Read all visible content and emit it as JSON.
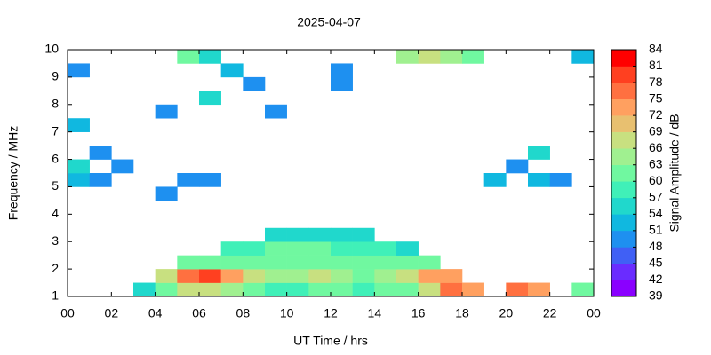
{
  "chart_data": {
    "type": "heatmap",
    "title": "2025-04-07",
    "x_label": "UT Time / hrs",
    "y_label": "Frequency / MHz",
    "colorbar_label": "Signal Amplitude / dB",
    "xlim": [
      0,
      24
    ],
    "ylim": [
      1,
      10
    ],
    "xticks": [
      {
        "value": 0,
        "label": "00"
      },
      {
        "value": 2,
        "label": "02"
      },
      {
        "value": 4,
        "label": "04"
      },
      {
        "value": 6,
        "label": "06"
      },
      {
        "value": 8,
        "label": "08"
      },
      10,
      12,
      14,
      16,
      18,
      20,
      22,
      {
        "value": 24,
        "label": "00"
      }
    ],
    "yticks": [
      1,
      2,
      3,
      4,
      5,
      6,
      7,
      8,
      9,
      10
    ],
    "clim": [
      39,
      84
    ],
    "cticks": [
      39,
      42,
      45,
      48,
      51,
      54,
      57,
      60,
      63,
      66,
      69,
      72,
      75,
      78,
      81,
      84
    ],
    "colorscale": [
      "#8a00ff",
      "#6a2cff",
      "#4060f5",
      "#1e90f0",
      "#10b8e0",
      "#20d8cc",
      "#40f0b8",
      "#70f8a0",
      "#a0f090",
      "#c8e080",
      "#e8c070",
      "#ffa060",
      "#ff7040",
      "#ff4020",
      "#ff0000"
    ],
    "z": [
      [
        null,
        null,
        null,
        55,
        62,
        68,
        66,
        64,
        60,
        58,
        58,
        60,
        60,
        58,
        60,
        62,
        66,
        76,
        72,
        null,
        76,
        74,
        null,
        60
      ],
      [
        null,
        null,
        null,
        null,
        66,
        76,
        78,
        74,
        66,
        64,
        64,
        66,
        64,
        62,
        64,
        68,
        72,
        74,
        null,
        null,
        null,
        null,
        null,
        null
      ],
      [
        null,
        null,
        null,
        null,
        null,
        60,
        62,
        62,
        60,
        60,
        62,
        62,
        60,
        60,
        60,
        60,
        62,
        null,
        null,
        null,
        null,
        null,
        null,
        null
      ],
      [
        null,
        null,
        null,
        null,
        null,
        null,
        null,
        58,
        58,
        60,
        60,
        60,
        58,
        58,
        58,
        56,
        null,
        null,
        null,
        null,
        null,
        null,
        null,
        null
      ],
      [
        null,
        null,
        null,
        null,
        null,
        null,
        null,
        null,
        null,
        54,
        54,
        55,
        54,
        54,
        null,
        null,
        null,
        null,
        null,
        null,
        null,
        null,
        null,
        null
      ],
      [
        null,
        null,
        null,
        null,
        null,
        null,
        null,
        null,
        null,
        null,
        null,
        null,
        null,
        null,
        null,
        null,
        null,
        null,
        null,
        null,
        null,
        null,
        null,
        null
      ],
      [
        null,
        null,
        null,
        null,
        null,
        null,
        null,
        null,
        null,
        null,
        null,
        null,
        null,
        null,
        null,
        null,
        null,
        null,
        null,
        null,
        null,
        null,
        null,
        null
      ],
      [
        null,
        null,
        null,
        null,
        50,
        null,
        null,
        null,
        null,
        null,
        null,
        null,
        null,
        null,
        null,
        null,
        null,
        null,
        null,
        null,
        null,
        null,
        null,
        null
      ],
      [
        52,
        50,
        null,
        null,
        null,
        50,
        48,
        null,
        null,
        null,
        null,
        null,
        null,
        null,
        null,
        null,
        null,
        null,
        null,
        52,
        null,
        52,
        50,
        null
      ],
      [
        54,
        null,
        50,
        null,
        null,
        null,
        null,
        null,
        null,
        null,
        null,
        null,
        null,
        null,
        null,
        null,
        null,
        null,
        null,
        null,
        50,
        null,
        null,
        null
      ],
      [
        null,
        50,
        null,
        null,
        null,
        null,
        null,
        null,
        null,
        null,
        null,
        null,
        null,
        null,
        null,
        null,
        null,
        null,
        null,
        null,
        null,
        56,
        null,
        null
      ],
      [
        null,
        null,
        null,
        null,
        null,
        null,
        null,
        null,
        null,
        null,
        null,
        null,
        null,
        null,
        null,
        null,
        null,
        null,
        null,
        null,
        null,
        null,
        null,
        null
      ],
      [
        52,
        null,
        null,
        null,
        null,
        null,
        null,
        null,
        null,
        null,
        null,
        null,
        null,
        null,
        null,
        null,
        null,
        null,
        null,
        null,
        null,
        null,
        null,
        null
      ],
      [
        null,
        null,
        null,
        null,
        50,
        null,
        null,
        null,
        null,
        48,
        null,
        null,
        null,
        null,
        null,
        null,
        null,
        null,
        null,
        null,
        null,
        null,
        null,
        null
      ],
      [
        null,
        null,
        null,
        null,
        null,
        null,
        54,
        null,
        null,
        null,
        null,
        null,
        null,
        null,
        null,
        null,
        null,
        null,
        null,
        null,
        null,
        null,
        null,
        null
      ],
      [
        null,
        null,
        null,
        null,
        null,
        null,
        null,
        null,
        48,
        null,
        null,
        null,
        50,
        null,
        null,
        null,
        null,
        null,
        null,
        null,
        null,
        null,
        null,
        null
      ],
      [
        50,
        null,
        null,
        null,
        null,
        null,
        null,
        52,
        null,
        null,
        null,
        null,
        48,
        null,
        null,
        null,
        null,
        null,
        null,
        null,
        null,
        null,
        null,
        null
      ],
      [
        null,
        null,
        null,
        null,
        null,
        62,
        56,
        null,
        null,
        null,
        null,
        null,
        null,
        null,
        null,
        64,
        66,
        64,
        60,
        null,
        null,
        null,
        null,
        52
      ]
    ]
  }
}
